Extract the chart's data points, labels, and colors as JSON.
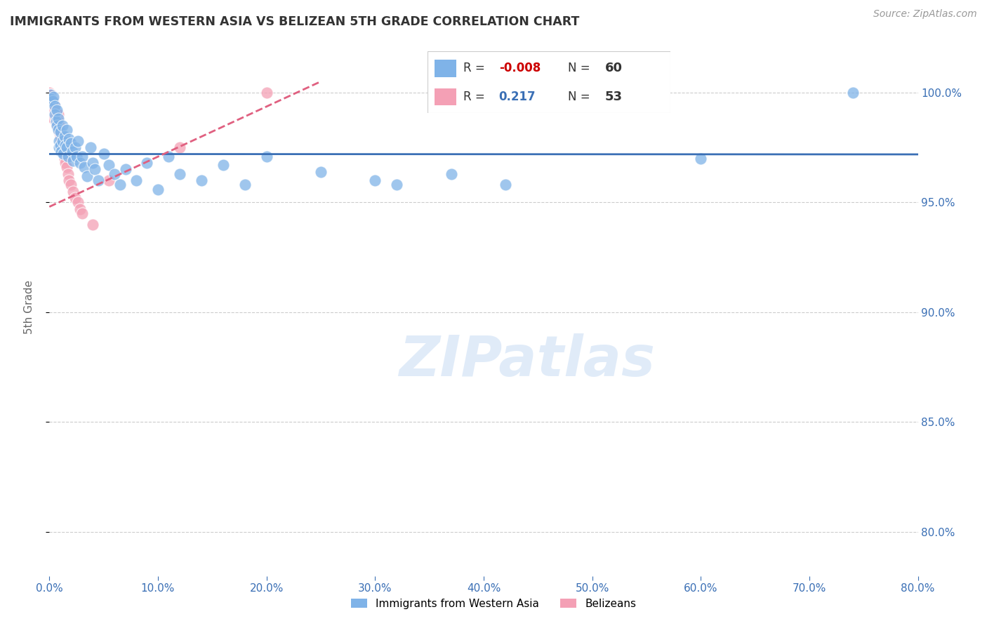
{
  "title": "IMMIGRANTS FROM WESTERN ASIA VS BELIZEAN 5TH GRADE CORRELATION CHART",
  "source": "Source: ZipAtlas.com",
  "ylabel_label": "5th Grade",
  "xmin": 0.0,
  "xmax": 0.8,
  "ymin": 0.78,
  "ymax": 1.025,
  "blue_R": "-0.008",
  "blue_N": "60",
  "pink_R": "0.217",
  "pink_N": "53",
  "blue_color": "#7fb3e8",
  "pink_color": "#f4a0b5",
  "blue_line_color": "#3a6fb5",
  "pink_line_color": "#e06080",
  "grid_color": "#cccccc",
  "blue_line_y_intercept": 0.972,
  "blue_line_slope": -0.0002,
  "pink_line_x0": 0.0,
  "pink_line_y0": 0.948,
  "pink_line_x1": 0.25,
  "pink_line_y1": 1.005,
  "blue_points_x": [
    0.001,
    0.002,
    0.003,
    0.004,
    0.005,
    0.005,
    0.006,
    0.007,
    0.007,
    0.008,
    0.008,
    0.009,
    0.009,
    0.01,
    0.01,
    0.011,
    0.012,
    0.012,
    0.013,
    0.014,
    0.015,
    0.016,
    0.016,
    0.017,
    0.018,
    0.02,
    0.021,
    0.022,
    0.024,
    0.025,
    0.026,
    0.028,
    0.03,
    0.032,
    0.035,
    0.038,
    0.04,
    0.042,
    0.045,
    0.05,
    0.055,
    0.06,
    0.065,
    0.07,
    0.08,
    0.09,
    0.1,
    0.11,
    0.12,
    0.14,
    0.16,
    0.18,
    0.2,
    0.25,
    0.3,
    0.32,
    0.37,
    0.42,
    0.6,
    0.74
  ],
  "blue_points_y": [
    0.999,
    0.997,
    0.996,
    0.998,
    0.994,
    0.99,
    0.987,
    0.985,
    0.992,
    0.988,
    0.983,
    0.978,
    0.975,
    0.982,
    0.976,
    0.973,
    0.985,
    0.978,
    0.972,
    0.98,
    0.976,
    0.983,
    0.975,
    0.971,
    0.979,
    0.977,
    0.973,
    0.969,
    0.975,
    0.971,
    0.978,
    0.968,
    0.971,
    0.966,
    0.962,
    0.975,
    0.968,
    0.965,
    0.96,
    0.972,
    0.967,
    0.963,
    0.958,
    0.965,
    0.96,
    0.968,
    0.956,
    0.971,
    0.963,
    0.96,
    0.967,
    0.958,
    0.971,
    0.964,
    0.96,
    0.958,
    0.963,
    0.958,
    0.97,
    1.0
  ],
  "pink_points_x": [
    0.0,
    0.0,
    0.0,
    0.001,
    0.001,
    0.001,
    0.001,
    0.001,
    0.002,
    0.002,
    0.002,
    0.002,
    0.002,
    0.003,
    0.003,
    0.003,
    0.003,
    0.004,
    0.004,
    0.004,
    0.004,
    0.005,
    0.005,
    0.005,
    0.006,
    0.006,
    0.006,
    0.007,
    0.007,
    0.008,
    0.008,
    0.008,
    0.009,
    0.009,
    0.01,
    0.011,
    0.012,
    0.013,
    0.014,
    0.015,
    0.016,
    0.017,
    0.018,
    0.02,
    0.022,
    0.024,
    0.026,
    0.028,
    0.03,
    0.04,
    0.055,
    0.12,
    0.2
  ],
  "pink_points_y": [
    1.0,
    0.999,
    0.998,
    0.999,
    0.997,
    0.996,
    0.994,
    0.993,
    0.999,
    0.997,
    0.995,
    0.993,
    0.99,
    0.997,
    0.995,
    0.993,
    0.99,
    0.996,
    0.993,
    0.99,
    0.988,
    0.994,
    0.992,
    0.989,
    0.991,
    0.989,
    0.986,
    0.988,
    0.985,
    0.99,
    0.987,
    0.984,
    0.985,
    0.982,
    0.98,
    0.978,
    0.975,
    0.972,
    0.97,
    0.968,
    0.966,
    0.963,
    0.96,
    0.958,
    0.955,
    0.952,
    0.95,
    0.947,
    0.945,
    0.94,
    0.96,
    0.975,
    1.0
  ]
}
